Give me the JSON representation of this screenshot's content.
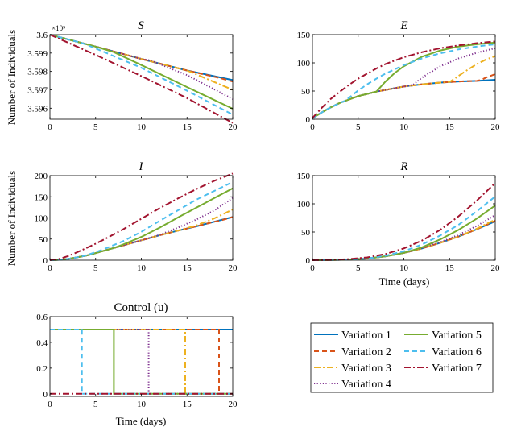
{
  "colors": {
    "var1": "#0072BD",
    "var2": "#D95319",
    "var3": "#EDB120",
    "var4": "#7E2F8E",
    "var5": "#77AC30",
    "var6": "#4DBEEE",
    "var7": "#A2142F"
  },
  "legend": {
    "col1": [
      "Variation 1",
      "Variation 2",
      "Variation 3",
      "Variation 4"
    ],
    "col2": [
      "Variation 5",
      "Variation 6",
      "Variation 7"
    ]
  },
  "chart_data": [
    {
      "id": "S",
      "type": "line",
      "title": "S",
      "title_italic": true,
      "xlabel": "",
      "ylabel": "Number of Individuals",
      "xlim": [
        0,
        20
      ],
      "ylim": [
        359540,
        360000
      ],
      "xticks": [
        "0",
        "5",
        "10",
        "15",
        "20"
      ],
      "yticks": [
        359600,
        359700,
        359800,
        359900,
        360000
      ],
      "ytick_labels": [
        "3.596",
        "3.597",
        "3.598",
        "3.599",
        "3.6"
      ],
      "exponent_label": "×10⁵",
      "series": [
        {
          "name": "Variation 1",
          "x": [
            0,
            5,
            10,
            15,
            20
          ],
          "y": [
            360000,
            359935,
            359868,
            359805,
            359753
          ]
        },
        {
          "name": "Variation 2",
          "x": [
            0,
            5,
            10,
            15,
            18.5,
            20
          ],
          "y": [
            360000,
            359935,
            359868,
            359805,
            359765,
            359745
          ]
        },
        {
          "name": "Variation 3",
          "x": [
            0,
            5,
            10,
            15,
            20
          ],
          "y": [
            360000,
            359935,
            359868,
            359805,
            359700
          ]
        },
        {
          "name": "Variation 4",
          "x": [
            0,
            5,
            10,
            11,
            15,
            20
          ],
          "y": [
            360000,
            359935,
            359868,
            359860,
            359780,
            359650
          ]
        },
        {
          "name": "Variation 5",
          "x": [
            0,
            5,
            7,
            10,
            15,
            20
          ],
          "y": [
            360000,
            359935,
            359905,
            359835,
            359715,
            359597
          ]
        },
        {
          "name": "Variation 6",
          "x": [
            0,
            3.5,
            5,
            10,
            15,
            20
          ],
          "y": [
            360000,
            359955,
            359925,
            359820,
            359695,
            359565
          ]
        },
        {
          "name": "Variation 7",
          "x": [
            0,
            5,
            10,
            15,
            20
          ],
          "y": [
            360000,
            359890,
            359775,
            359655,
            359520
          ]
        }
      ]
    },
    {
      "id": "E",
      "type": "line",
      "title": "E",
      "title_italic": true,
      "xlabel": "",
      "ylabel": "",
      "xlim": [
        0,
        20
      ],
      "ylim": [
        0,
        150
      ],
      "xticks": [
        "0",
        "5",
        "10",
        "15",
        "20"
      ],
      "yticks": [
        0,
        50,
        100,
        150
      ],
      "ytick_labels": [
        "0",
        "50",
        "100",
        "150"
      ],
      "series": [
        {
          "name": "Variation 1",
          "x": [
            0,
            1,
            2,
            3,
            4,
            5,
            6,
            7,
            8,
            9,
            10,
            12,
            14,
            16,
            18,
            20
          ],
          "y": [
            2,
            12,
            21,
            29,
            35,
            41,
            45,
            49,
            52,
            55,
            58,
            62,
            65,
            67,
            68,
            70
          ]
        },
        {
          "name": "Variation 2",
          "x": [
            0,
            1,
            2,
            3,
            4,
            5,
            6,
            7,
            8,
            9,
            10,
            12,
            14,
            16,
            18,
            18.5,
            19,
            20
          ],
          "y": [
            2,
            12,
            21,
            29,
            35,
            41,
            45,
            49,
            52,
            55,
            58,
            62,
            65,
            67,
            68,
            70,
            74,
            80
          ]
        },
        {
          "name": "Variation 3",
          "x": [
            0,
            1,
            2,
            3,
            4,
            5,
            6,
            7,
            8,
            9,
            10,
            12,
            14,
            15,
            16,
            17,
            18,
            19,
            20
          ],
          "y": [
            2,
            12,
            21,
            29,
            35,
            41,
            45,
            49,
            52,
            55,
            58,
            62,
            65,
            66,
            77,
            88,
            98,
            106,
            112
          ]
        },
        {
          "name": "Variation 4",
          "x": [
            0,
            1,
            2,
            3,
            4,
            5,
            6,
            7,
            8,
            9,
            10,
            11,
            12,
            14,
            16,
            18,
            20
          ],
          "y": [
            2,
            12,
            21,
            29,
            35,
            41,
            45,
            49,
            52,
            55,
            58,
            61,
            74,
            94,
            108,
            118,
            126
          ]
        },
        {
          "name": "Variation 5",
          "x": [
            0,
            1,
            2,
            3,
            4,
            5,
            6,
            7,
            8,
            9,
            10,
            12,
            14,
            16,
            18,
            20
          ],
          "y": [
            2,
            12,
            21,
            29,
            35,
            41,
            45,
            49,
            67,
            82,
            94,
            111,
            122,
            129,
            133,
            136
          ]
        },
        {
          "name": "Variation 6",
          "x": [
            0,
            1,
            2,
            3,
            3.5,
            4,
            5,
            6,
            7,
            8,
            10,
            12,
            14,
            16,
            18,
            20
          ],
          "y": [
            2,
            12,
            21,
            29,
            32,
            38,
            51,
            62,
            72,
            81,
            96,
            108,
            117,
            124,
            129,
            133
          ]
        },
        {
          "name": "Variation 7",
          "x": [
            0,
            1,
            2,
            3,
            4,
            5,
            6,
            7,
            8,
            10,
            12,
            14,
            16,
            18,
            20
          ],
          "y": [
            2,
            20,
            36,
            49,
            61,
            72,
            81,
            90,
            98,
            110,
            119,
            126,
            131,
            135,
            138
          ]
        }
      ]
    },
    {
      "id": "I",
      "type": "line",
      "title": "I",
      "title_italic": true,
      "xlabel": "",
      "ylabel": "Number of Individuals",
      "xlim": [
        0,
        20
      ],
      "ylim": [
        0,
        200
      ],
      "xticks": [
        "0",
        "5",
        "10",
        "15",
        "20"
      ],
      "yticks": [
        0,
        50,
        100,
        150,
        200
      ],
      "ytick_labels": [
        "0",
        "50",
        "100",
        "150",
        "200"
      ],
      "series": [
        {
          "name": "Variation 1",
          "x": [
            0,
            1,
            2,
            3,
            4,
            5,
            6,
            8,
            10,
            12,
            14,
            16,
            18,
            20
          ],
          "y": [
            0,
            1,
            3,
            7,
            11,
            17,
            23,
            35,
            47,
            59,
            70,
            80,
            91,
            102
          ]
        },
        {
          "name": "Variation 2",
          "x": [
            0,
            1,
            2,
            3,
            4,
            5,
            6,
            8,
            10,
            12,
            14,
            16,
            18,
            18.5,
            20
          ],
          "y": [
            0,
            1,
            3,
            7,
            11,
            17,
            23,
            35,
            47,
            59,
            70,
            80,
            91,
            93,
            102
          ]
        },
        {
          "name": "Variation 3",
          "x": [
            0,
            1,
            2,
            3,
            4,
            5,
            6,
            8,
            10,
            12,
            14,
            15,
            16,
            18,
            20
          ],
          "y": [
            0,
            1,
            3,
            7,
            11,
            17,
            23,
            35,
            47,
            59,
            70,
            76,
            82,
            99,
            120
          ]
        },
        {
          "name": "Variation 4",
          "x": [
            0,
            1,
            2,
            3,
            4,
            5,
            6,
            8,
            10,
            11,
            12,
            14,
            16,
            18,
            20
          ],
          "y": [
            0,
            1,
            3,
            7,
            11,
            17,
            23,
            35,
            47,
            53,
            60,
            77,
            96,
            118,
            147
          ]
        },
        {
          "name": "Variation 5",
          "x": [
            0,
            1,
            2,
            3,
            4,
            5,
            6,
            7,
            8,
            10,
            12,
            14,
            16,
            18,
            20
          ],
          "y": [
            0,
            1,
            3,
            7,
            11,
            17,
            23,
            29,
            37,
            55,
            77,
            101,
            124,
            147,
            170
          ]
        },
        {
          "name": "Variation 6",
          "x": [
            0,
            1,
            2,
            3,
            3.5,
            4,
            5,
            6,
            8,
            10,
            12,
            14,
            16,
            18,
            20
          ],
          "y": [
            0,
            1,
            3,
            7,
            9,
            12,
            19,
            27,
            45,
            67,
            93,
            118,
            143,
            164,
            185
          ]
        },
        {
          "name": "Variation 7",
          "x": [
            0,
            1,
            2,
            3,
            4,
            5,
            6,
            8,
            10,
            12,
            14,
            16,
            18,
            20
          ],
          "y": [
            0,
            3,
            10,
            19,
            29,
            39,
            50,
            73,
            98,
            123,
            146,
            168,
            188,
            205
          ]
        }
      ]
    },
    {
      "id": "R",
      "type": "line",
      "title": "R",
      "title_italic": true,
      "xlabel": "Time (days)",
      "ylabel": "",
      "xlim": [
        0,
        20
      ],
      "ylim": [
        0,
        150
      ],
      "xticks": [
        "0",
        "5",
        "10",
        "15",
        "20"
      ],
      "yticks": [
        0,
        50,
        100,
        150
      ],
      "ytick_labels": [
        "0",
        "50",
        "100",
        "150"
      ],
      "series": [
        {
          "name": "Variation 1",
          "x": [
            0,
            2,
            4,
            6,
            8,
            10,
            12,
            14,
            16,
            18,
            20
          ],
          "y": [
            0,
            0.3,
            1,
            3,
            7,
            13,
            21,
            31,
            42,
            55,
            69
          ]
        },
        {
          "name": "Variation 2",
          "x": [
            0,
            2,
            4,
            6,
            8,
            10,
            12,
            14,
            16,
            18,
            20
          ],
          "y": [
            0,
            0.3,
            1,
            3,
            7,
            13,
            21,
            31,
            42,
            55,
            70
          ]
        },
        {
          "name": "Variation 3",
          "x": [
            0,
            2,
            4,
            6,
            8,
            10,
            12,
            14,
            16,
            18,
            20
          ],
          "y": [
            0,
            0.3,
            1,
            3,
            7,
            13,
            21,
            31,
            42,
            56,
            72
          ]
        },
        {
          "name": "Variation 4",
          "x": [
            0,
            2,
            4,
            6,
            8,
            10,
            12,
            14,
            16,
            18,
            20
          ],
          "y": [
            0,
            0.3,
            1,
            3,
            7,
            13,
            22,
            32,
            45,
            61,
            80
          ]
        },
        {
          "name": "Variation 5",
          "x": [
            0,
            2,
            4,
            6,
            8,
            10,
            12,
            14,
            16,
            18,
            20
          ],
          "y": [
            0,
            0.3,
            1,
            3,
            7,
            13,
            23,
            37,
            54,
            74,
            97
          ]
        },
        {
          "name": "Variation 6",
          "x": [
            0,
            2,
            4,
            6,
            8,
            10,
            12,
            14,
            16,
            18,
            20
          ],
          "y": [
            0,
            0.3,
            1,
            3,
            8,
            16,
            28,
            44,
            63,
            87,
            113
          ]
        },
        {
          "name": "Variation 7",
          "x": [
            0,
            2,
            4,
            6,
            8,
            10,
            12,
            14,
            16,
            18,
            20
          ],
          "y": [
            0,
            0.4,
            2,
            5,
            11,
            21,
            35,
            54,
            78,
            106,
            137
          ]
        }
      ]
    },
    {
      "id": "Control",
      "type": "line",
      "title": "Control (u)",
      "xlabel": "Time (days)",
      "ylabel": "",
      "xlim": [
        0,
        20
      ],
      "ylim": [
        -0.02,
        0.6
      ],
      "xticks": [
        "0",
        "5",
        "10",
        "15",
        "20"
      ],
      "yticks": [
        0,
        0.2,
        0.4,
        0.6
      ],
      "ytick_labels": [
        "0",
        "0.2",
        "0.4",
        "0.6"
      ],
      "series": [
        {
          "name": "Variation 1",
          "x": [
            0,
            20
          ],
          "y": [
            0.5,
            0.5
          ]
        },
        {
          "name": "Variation 2",
          "x": [
            0,
            18.5,
            18.5,
            20
          ],
          "y": [
            0.5,
            0.5,
            0,
            0
          ]
        },
        {
          "name": "Variation 3",
          "x": [
            0,
            14.8,
            14.8,
            20
          ],
          "y": [
            0.5,
            0.5,
            0,
            0
          ]
        },
        {
          "name": "Variation 4",
          "x": [
            0,
            10.8,
            10.8,
            20
          ],
          "y": [
            0.5,
            0.5,
            0,
            0
          ]
        },
        {
          "name": "Variation 5",
          "x": [
            0,
            7,
            7,
            20
          ],
          "y": [
            0.5,
            0.5,
            0,
            0
          ]
        },
        {
          "name": "Variation 6",
          "x": [
            0,
            3.5,
            3.5,
            20
          ],
          "y": [
            0.5,
            0.5,
            0,
            0
          ]
        },
        {
          "name": "Variation 7",
          "x": [
            0,
            20
          ],
          "y": [
            0,
            0
          ]
        }
      ]
    }
  ]
}
